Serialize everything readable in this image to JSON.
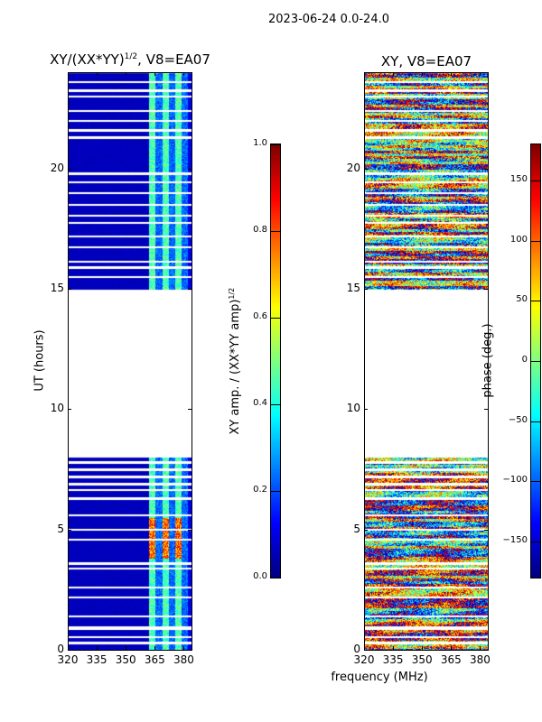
{
  "suptitle": "2023-06-24 0.0-24.0",
  "xlabel": "frequency (MHz)",
  "chart_data": [
    {
      "type": "heatmap",
      "title": "XY/(XX*YY)",
      "title_sup": "1/2",
      "title_suffix": ", V8=EA07",
      "xlabel": "frequency (MHz)",
      "ylabel": "UT (hours)",
      "xlim": [
        320,
        384
      ],
      "ylim": [
        0,
        24
      ],
      "xticks": [
        "320",
        "335",
        "350",
        "365",
        "380"
      ],
      "xtick_values": [
        320,
        335,
        350,
        365,
        380
      ],
      "yticks": [
        "0",
        "5",
        "10",
        "15",
        "20"
      ],
      "ytick_values": [
        0,
        5,
        10,
        15,
        20
      ],
      "colormap": "jet",
      "colorbar": {
        "label": "XY amp. / (XX*YY amp)",
        "label_sup": "1/2",
        "range": [
          0.0,
          1.0
        ],
        "ticks": [
          "0.0",
          "0.2",
          "0.4",
          "0.6",
          "0.8",
          "1.0"
        ],
        "tick_values": [
          0.0,
          0.2,
          0.4,
          0.6,
          0.8,
          1.0
        ]
      },
      "data_intervals_hours": [
        [
          0.0,
          8.0
        ],
        [
          15.0,
          24.0
        ]
      ],
      "typical_values": {
        "below_362MHz": 0.05,
        "362_382MHz": 0.35,
        "362_382MHz_3to5.5h": 0.8
      }
    },
    {
      "type": "heatmap",
      "title": "XY, V8=EA07",
      "xlabel": "frequency (MHz)",
      "ylabel": "",
      "xlim": [
        320,
        384
      ],
      "ylim": [
        0,
        24
      ],
      "xticks": [
        "320",
        "335",
        "350",
        "365",
        "380"
      ],
      "xtick_values": [
        320,
        335,
        350,
        365,
        380
      ],
      "yticks": [
        "0",
        "5",
        "10",
        "15",
        "20"
      ],
      "ytick_values": [
        0,
        5,
        10,
        15,
        20
      ],
      "colormap": "jet",
      "colorbar": {
        "label": "phase (deg.)",
        "range": [
          -180,
          180
        ],
        "ticks": [
          "−150",
          "−100",
          "−50",
          "0",
          "50",
          "100",
          "150"
        ],
        "tick_values": [
          -150,
          -100,
          -50,
          0,
          50,
          100,
          150
        ]
      },
      "data_intervals_hours": [
        [
          0.0,
          8.0
        ],
        [
          15.0,
          24.0
        ]
      ],
      "typical_values": {
        "phase": "noisy, full range -180 to 180"
      }
    }
  ],
  "gaps_hours": [
    0.3,
    0.55,
    0.88,
    0.95,
    1.4,
    2.2,
    2.6,
    3.4,
    3.6,
    4.6,
    5.0,
    5.6,
    6.3,
    6.65,
    6.9,
    7.2,
    7.5,
    7.8,
    15.5,
    15.9,
    16.15,
    16.75,
    17.2,
    17.75,
    18.05,
    18.5,
    19.0,
    19.45,
    19.8,
    21.3,
    21.6,
    22.0,
    22.4,
    23.0,
    23.25,
    23.6
  ]
}
